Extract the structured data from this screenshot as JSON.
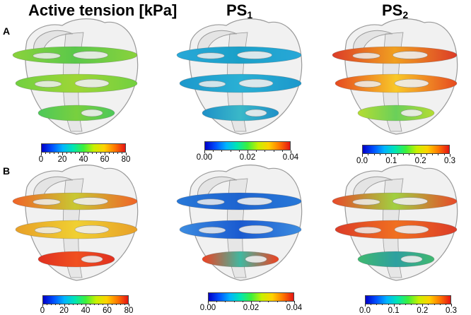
{
  "columns": [
    {
      "title": "Active tension [kPa]",
      "sub": ""
    },
    {
      "title": "PS",
      "sub": "1"
    },
    {
      "title": "PS",
      "sub": "2"
    }
  ],
  "rows": [
    {
      "label": "A"
    },
    {
      "label": "B"
    }
  ],
  "colorbars": {
    "tension": {
      "ticks": [
        "0",
        "20",
        "40",
        "60",
        "80"
      ]
    },
    "ps1": {
      "ticks": [
        "0.00",
        "0.02",
        "0.04"
      ]
    },
    "ps2": {
      "ticks": [
        "0.0",
        "0.1",
        "0.2",
        "0.3"
      ]
    }
  },
  "colors": {
    "jet": [
      "#0000c8",
      "#0050ff",
      "#00b4ff",
      "#00e6b4",
      "#3cf03c",
      "#c8f000",
      "#ffd200",
      "#ff7800",
      "#e61414"
    ],
    "heart_outline": "#9a9a9a",
    "heart_fill": "#d8d8d8"
  },
  "panels": [
    {
      "row": 0,
      "col": 0,
      "slices": [
        [
          "#8ad23c",
          "#5ac84a"
        ],
        [
          "#72d040",
          "#9ed636"
        ],
        [
          "#4ec85a",
          "#78d03e"
        ]
      ]
    },
    {
      "row": 0,
      "col": 1,
      "slices": [
        [
          "#28a8d8",
          "#1aa0c8"
        ],
        [
          "#1c98cc",
          "#2ab0d4"
        ],
        [
          "#1e90c8",
          "#3ab8c8"
        ]
      ]
    },
    {
      "row": 0,
      "col": 2,
      "slices": [
        [
          "#dc3c28",
          "#f0a020"
        ],
        [
          "#e64a20",
          "#f8c828"
        ],
        [
          "#b4dc32",
          "#6ad05a"
        ]
      ]
    },
    {
      "row": 1,
      "col": 0,
      "slices": [
        [
          "#f06428",
          "#c8c832"
        ],
        [
          "#e8a028",
          "#f0d032"
        ],
        [
          "#e03020",
          "#f05020"
        ]
      ]
    },
    {
      "row": 1,
      "col": 1,
      "slices": [
        [
          "#2878d8",
          "#1e64d0"
        ],
        [
          "#3c8ce0",
          "#1a5ad0"
        ],
        [
          "#f04020",
          "#40b8a0"
        ]
      ]
    },
    {
      "row": 1,
      "col": 2,
      "slices": [
        [
          "#e84a2a",
          "#a0d040"
        ],
        [
          "#dc3c28",
          "#f07020"
        ],
        [
          "#40b870",
          "#2ea0a0"
        ]
      ]
    }
  ]
}
